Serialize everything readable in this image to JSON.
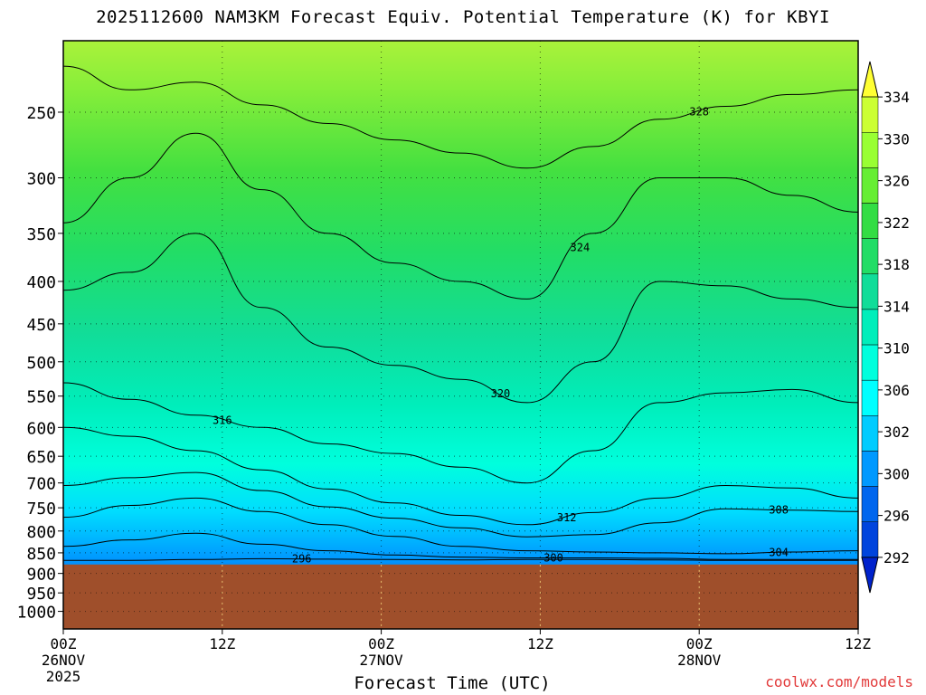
{
  "chart_data": {
    "type": "heatmap",
    "title": "2025112600 NAM3KM Forecast Equiv. Potential Temperature (K) for KBYI",
    "xlabel": "Forecast Time (UTC)",
    "ylabel": "",
    "credit": "coolwx.com/models",
    "x_ticks": [
      {
        "hour": 0,
        "line1": "00Z",
        "line2": "26NOV",
        "line3": "2025"
      },
      {
        "hour": 12,
        "line1": "12Z",
        "line2": "",
        "line3": ""
      },
      {
        "hour": 24,
        "line1": "00Z",
        "line2": "27NOV",
        "line3": ""
      },
      {
        "hour": 36,
        "line1": "12Z",
        "line2": "",
        "line3": ""
      },
      {
        "hour": 48,
        "line1": "00Z",
        "line2": "28NOV",
        "line3": ""
      },
      {
        "hour": 60,
        "line1": "12Z",
        "line2": "",
        "line3": ""
      }
    ],
    "y_ticks": [
      250,
      300,
      350,
      400,
      450,
      500,
      550,
      600,
      650,
      700,
      750,
      800,
      850,
      900,
      950,
      1000
    ],
    "xlim": [
      0,
      60
    ],
    "ylim_hpa": [
      205,
      1050
    ],
    "y_scale": "log",
    "y_reversed": true,
    "surface_pressure_hpa": 878,
    "colorbar": {
      "labels": [
        334,
        330,
        326,
        322,
        318,
        314,
        310,
        306,
        302,
        300,
        296,
        292
      ],
      "colors": [
        "#ffff33",
        "#ccff33",
        "#99ff33",
        "#66ee33",
        "#33dd44",
        "#22dd66",
        "#11dd99",
        "#00eebb",
        "#00ffdd",
        "#00ffff",
        "#00ccff",
        "#0099ff",
        "#0066ee",
        "#0044dd",
        "#0022cc"
      ]
    },
    "contours": [
      {
        "level": "296",
        "hpa": [
          868,
          868,
          866,
          864,
          865,
          866,
          867,
          866,
          866,
          867,
          868,
          868,
          868
        ],
        "label_hour": 18
      },
      {
        "level": "300",
        "hpa": [
          835,
          820,
          805,
          830,
          845,
          855,
          860,
          862,
          862,
          863,
          866,
          866,
          866
        ],
        "label_hour": 37
      },
      {
        "level": "304",
        "hpa": [
          770,
          745,
          730,
          758,
          786,
          812,
          835,
          845,
          848,
          850,
          852,
          848,
          845
        ],
        "label_hour": 54
      },
      {
        "level": "308",
        "hpa": [
          705,
          690,
          680,
          715,
          748,
          772,
          793,
          813,
          808,
          782,
          752,
          755,
          758
        ],
        "label_hour": 54
      },
      {
        "level": "312",
        "hpa": [
          600,
          615,
          640,
          675,
          712,
          740,
          766,
          786,
          760,
          730,
          705,
          710,
          730
        ],
        "label_hour": 38
      },
      {
        "level": "316",
        "hpa": [
          530,
          555,
          580,
          600,
          628,
          645,
          670,
          700,
          640,
          560,
          545,
          540,
          560
        ],
        "label_hour": 12
      },
      {
        "level": "320",
        "hpa": [
          410,
          390,
          350,
          430,
          480,
          505,
          525,
          560,
          500,
          400,
          405,
          420,
          430
        ],
        "label_hour": 33
      },
      {
        "level": "324",
        "hpa": [
          340,
          300,
          265,
          310,
          350,
          380,
          400,
          420,
          350,
          300,
          300,
          315,
          330
        ],
        "label_hour": 39
      },
      {
        "level": "328",
        "hpa": [
          220,
          235,
          230,
          245,
          258,
          270,
          280,
          292,
          275,
          255,
          246,
          238,
          235
        ],
        "label_hour": 48
      }
    ]
  }
}
